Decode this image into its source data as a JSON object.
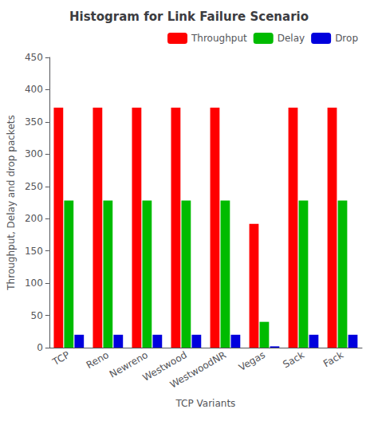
{
  "chart_data": {
    "type": "bar",
    "title": "Histogram for Link Failure Scenario",
    "xlabel": "TCP Variants",
    "ylabel": "Throughput, Delay and drop packets",
    "categories": [
      "TCP",
      "Reno",
      "Newreno",
      "Westwood",
      "WestwoodNR",
      "Vegas",
      "Sack",
      "Fack"
    ],
    "series": [
      {
        "name": "Throughput",
        "color": "#ff0000",
        "values": [
          372,
          372,
          372,
          372,
          372,
          192,
          372,
          372
        ]
      },
      {
        "name": "Delay",
        "color": "#00bb00",
        "values": [
          228,
          228,
          228,
          228,
          228,
          40,
          228,
          228
        ]
      },
      {
        "name": "Drop",
        "color": "#0000dd",
        "values": [
          20,
          20,
          20,
          20,
          20,
          2,
          20,
          20
        ]
      }
    ],
    "ylim": [
      0,
      450
    ],
    "yticks": [
      0,
      50,
      100,
      150,
      200,
      250,
      300,
      350,
      400,
      450
    ],
    "grid": false,
    "legend": "upper right"
  }
}
